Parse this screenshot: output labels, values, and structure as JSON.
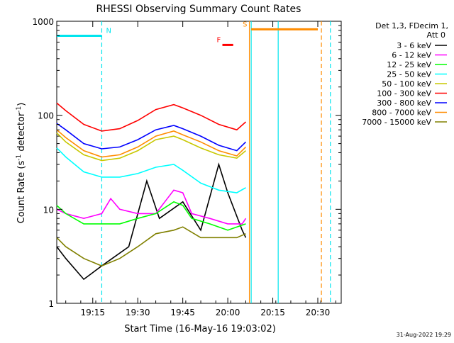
{
  "chart_data": {
    "type": "line",
    "title": "RHESSI Observing Summary Count Rates",
    "xlabel": "Start Time (16-May-16 19:03:02)",
    "ylabel_main": "Count Rate (s",
    "ylabel_sup1": "-1",
    "ylabel_mid": " detector",
    "ylabel_sup2": "-1",
    "ylabel_end": ")",
    "y_scale": "log",
    "ylim": [
      1,
      1000
    ],
    "xlim_minutes": [
      19.05,
      20.63
    ],
    "x_ticks": [
      {
        "label": "19:15",
        "value": 19.25
      },
      {
        "label": "19:30",
        "value": 19.5
      },
      {
        "label": "19:45",
        "value": 19.75
      },
      {
        "label": "20:00",
        "value": 20.0
      },
      {
        "label": "20:15",
        "value": 20.25
      },
      {
        "label": "20:30",
        "value": 20.5
      }
    ],
    "y_ticks": [
      {
        "label": "1",
        "value": 1
      },
      {
        "label": "10",
        "value": 10
      },
      {
        "label": "100",
        "value": 100
      },
      {
        "label": "1000",
        "value": 1000
      }
    ],
    "legend_header": [
      "Det 1,3, FDecim 1,",
      "Att 0"
    ],
    "legend_position": "right",
    "series": [
      {
        "name": "3 - 6 keV",
        "color": "#000000",
        "values": [
          [
            19.05,
            4
          ],
          [
            19.1,
            3
          ],
          [
            19.2,
            1.8
          ],
          [
            19.3,
            2.5
          ],
          [
            19.45,
            4
          ],
          [
            19.55,
            20
          ],
          [
            19.62,
            8
          ],
          [
            19.75,
            12
          ],
          [
            19.85,
            6
          ],
          [
            19.95,
            30
          ],
          [
            20.0,
            15
          ],
          [
            20.08,
            6
          ],
          [
            20.1,
            5
          ]
        ]
      },
      {
        "name": "6 - 12 keV",
        "color": "#ff00ff",
        "values": [
          [
            19.05,
            10
          ],
          [
            19.1,
            9
          ],
          [
            19.2,
            8
          ],
          [
            19.3,
            9
          ],
          [
            19.35,
            13
          ],
          [
            19.4,
            10
          ],
          [
            19.5,
            9
          ],
          [
            19.6,
            9
          ],
          [
            19.65,
            12
          ],
          [
            19.7,
            16
          ],
          [
            19.75,
            15
          ],
          [
            19.8,
            9
          ],
          [
            19.9,
            8
          ],
          [
            20.0,
            7
          ],
          [
            20.08,
            7
          ],
          [
            20.1,
            8
          ]
        ]
      },
      {
        "name": "12 - 25 keV",
        "color": "#00ff00",
        "values": [
          [
            19.05,
            11
          ],
          [
            19.1,
            9
          ],
          [
            19.2,
            7
          ],
          [
            19.3,
            7
          ],
          [
            19.4,
            7
          ],
          [
            19.5,
            8
          ],
          [
            19.6,
            9
          ],
          [
            19.7,
            12
          ],
          [
            19.75,
            11
          ],
          [
            19.8,
            8
          ],
          [
            19.9,
            7
          ],
          [
            20.0,
            6
          ],
          [
            20.1,
            7
          ]
        ]
      },
      {
        "name": "25 - 50 keV",
        "color": "#00ffff",
        "values": [
          [
            19.05,
            45
          ],
          [
            19.1,
            36
          ],
          [
            19.2,
            25
          ],
          [
            19.3,
            22
          ],
          [
            19.4,
            22
          ],
          [
            19.5,
            24
          ],
          [
            19.6,
            28
          ],
          [
            19.7,
            30
          ],
          [
            19.75,
            26
          ],
          [
            19.85,
            19
          ],
          [
            19.95,
            16
          ],
          [
            20.05,
            15
          ],
          [
            20.1,
            17
          ]
        ]
      },
      {
        "name": "50 - 100 keV",
        "color": "#c8c800",
        "values": [
          [
            19.05,
            65
          ],
          [
            19.1,
            52
          ],
          [
            19.2,
            38
          ],
          [
            19.3,
            33
          ],
          [
            19.4,
            35
          ],
          [
            19.5,
            42
          ],
          [
            19.6,
            55
          ],
          [
            19.7,
            60
          ],
          [
            19.75,
            55
          ],
          [
            19.85,
            45
          ],
          [
            19.95,
            38
          ],
          [
            20.05,
            35
          ],
          [
            20.1,
            42
          ]
        ]
      },
      {
        "name": "100 - 300 keV",
        "color": "#ff0000",
        "values": [
          [
            19.05,
            135
          ],
          [
            19.1,
            112
          ],
          [
            19.2,
            80
          ],
          [
            19.3,
            68
          ],
          [
            19.4,
            72
          ],
          [
            19.5,
            88
          ],
          [
            19.6,
            115
          ],
          [
            19.7,
            130
          ],
          [
            19.75,
            120
          ],
          [
            19.85,
            100
          ],
          [
            19.95,
            80
          ],
          [
            20.05,
            70
          ],
          [
            20.1,
            85
          ]
        ]
      },
      {
        "name": "300 - 800 keV",
        "color": "#0000ff",
        "values": [
          [
            19.05,
            82
          ],
          [
            19.1,
            70
          ],
          [
            19.2,
            50
          ],
          [
            19.3,
            44
          ],
          [
            19.4,
            46
          ],
          [
            19.5,
            55
          ],
          [
            19.6,
            70
          ],
          [
            19.7,
            78
          ],
          [
            19.75,
            72
          ],
          [
            19.85,
            60
          ],
          [
            19.95,
            48
          ],
          [
            20.05,
            42
          ],
          [
            20.1,
            52
          ]
        ]
      },
      {
        "name": "800 - 7000 keV",
        "color": "#ff8c00",
        "values": [
          [
            19.05,
            70
          ],
          [
            19.1,
            58
          ],
          [
            19.2,
            42
          ],
          [
            19.3,
            36
          ],
          [
            19.4,
            38
          ],
          [
            19.5,
            46
          ],
          [
            19.6,
            60
          ],
          [
            19.7,
            68
          ],
          [
            19.75,
            62
          ],
          [
            19.85,
            52
          ],
          [
            19.95,
            42
          ],
          [
            20.05,
            37
          ],
          [
            20.1,
            46
          ]
        ]
      },
      {
        "name": "7000 - 15000 keV",
        "color": "#808000",
        "values": [
          [
            19.05,
            5
          ],
          [
            19.1,
            4
          ],
          [
            19.2,
            3
          ],
          [
            19.3,
            2.5
          ],
          [
            19.4,
            3
          ],
          [
            19.5,
            4
          ],
          [
            19.6,
            5.5
          ],
          [
            19.7,
            6
          ],
          [
            19.75,
            6.5
          ],
          [
            19.85,
            5
          ],
          [
            19.95,
            5
          ],
          [
            20.05,
            5
          ],
          [
            20.1,
            5.5
          ]
        ]
      }
    ],
    "annotations": [
      {
        "label": "N",
        "color": "#00e5ee",
        "x_start": 19.05,
        "x_end": 19.3,
        "y": 700
      },
      {
        "label": "F",
        "color": "#ff0000",
        "x_start": 19.97,
        "x_end": 20.03,
        "y": 560
      },
      {
        "label": "S",
        "color": "#ff8c00",
        "x_start": 20.13,
        "x_end": 20.5,
        "y": 820
      }
    ],
    "vlines": [
      {
        "x": 19.3,
        "color": "#00e5ee",
        "style": "dashed"
      },
      {
        "x": 20.12,
        "color": "#ff8c00",
        "style": "solid"
      },
      {
        "x": 20.13,
        "color": "#00e5ee",
        "style": "solid"
      },
      {
        "x": 20.28,
        "color": "#00e5ee",
        "style": "solid"
      },
      {
        "x": 20.52,
        "color": "#ff8c00",
        "style": "dashed"
      },
      {
        "x": 20.57,
        "color": "#00e5ee",
        "style": "dashed"
      }
    ]
  },
  "footer": {
    "timestamp": "31-Aug-2022 19:29"
  }
}
